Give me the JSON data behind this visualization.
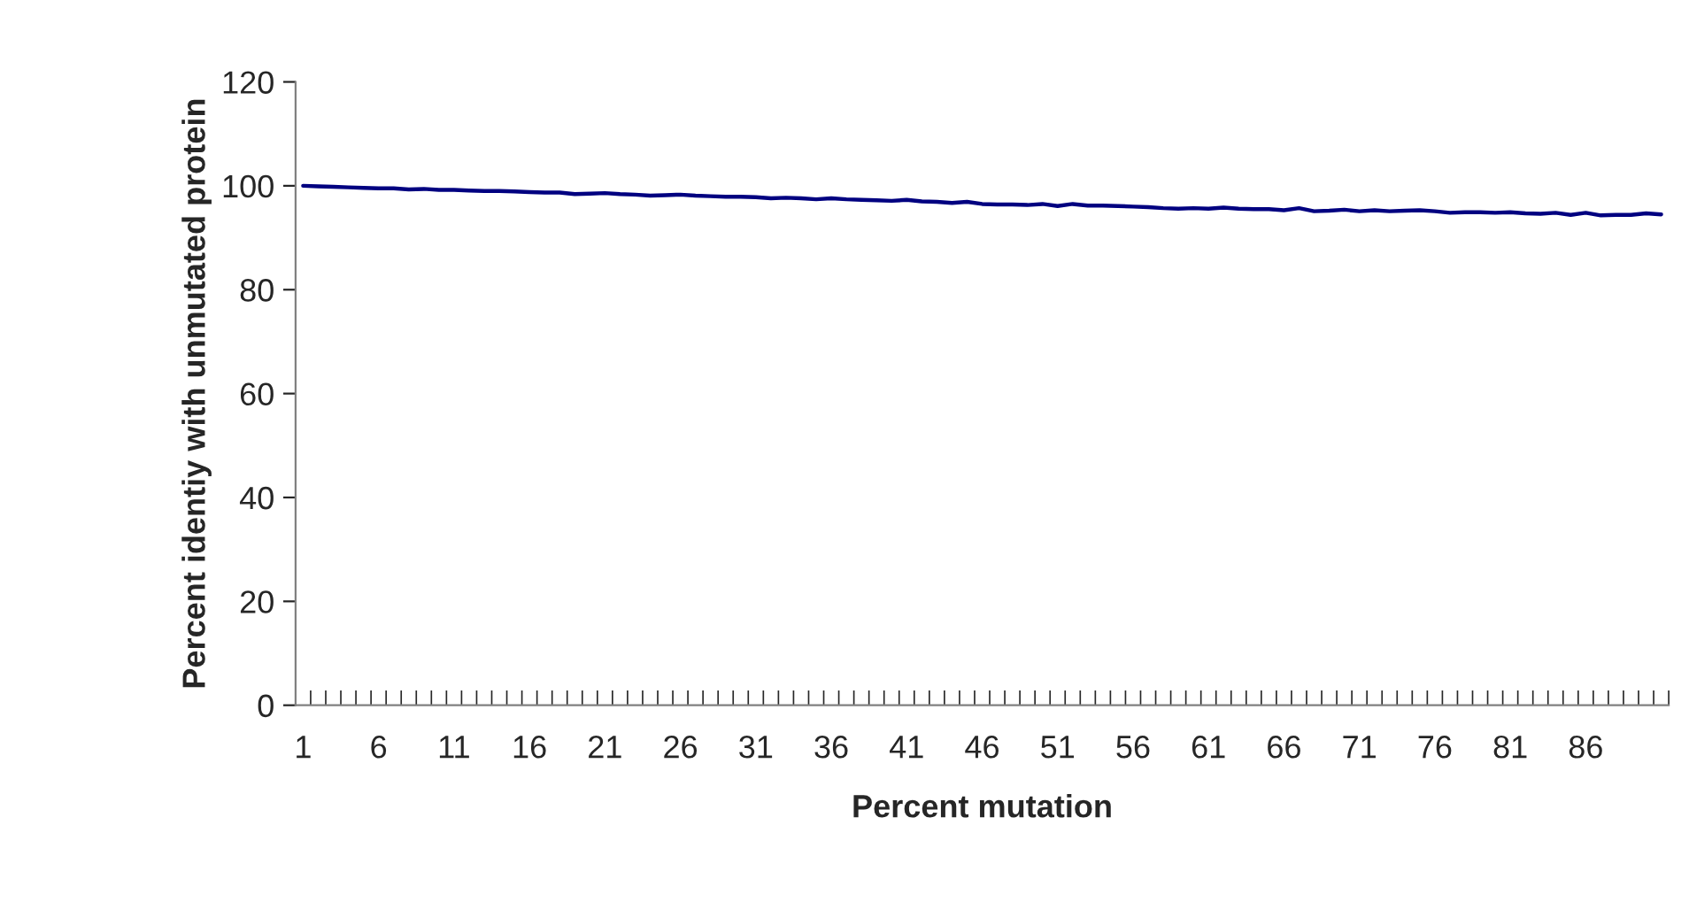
{
  "chart_data": {
    "type": "line",
    "xlabel": "Percent mutation",
    "ylabel": "Percent identiy with unmutated protein",
    "categories": [
      "1",
      null,
      null,
      null,
      null,
      "6",
      null,
      null,
      null,
      null,
      "11",
      null,
      null,
      null,
      null,
      "16",
      null,
      null,
      null,
      null,
      "21",
      null,
      null,
      null,
      null,
      "26",
      null,
      null,
      null,
      null,
      "31",
      null,
      null,
      null,
      null,
      "36",
      null,
      null,
      null,
      null,
      "41",
      null,
      null,
      null,
      null,
      "46",
      null,
      null,
      null,
      null,
      "51",
      null,
      null,
      null,
      null,
      "56",
      null,
      null,
      null,
      null,
      "61",
      null,
      null,
      null,
      null,
      "66",
      null,
      null,
      null,
      null,
      "71",
      null,
      null,
      null,
      null,
      "76",
      null,
      null,
      null,
      null,
      "81",
      null,
      null,
      null,
      null,
      "86",
      null,
      null,
      null,
      null,
      null
    ],
    "series": [
      {
        "color": "#000080",
        "values": [
          100,
          99.9,
          99.8,
          99.7,
          99.6,
          99.5,
          99.5,
          99.3,
          99.4,
          99.2,
          99.2,
          99.1,
          99,
          99,
          98.9,
          98.8,
          98.7,
          98.7,
          98.4,
          98.5,
          98.6,
          98.4,
          98.3,
          98.1,
          98.2,
          98.3,
          98.1,
          98,
          97.9,
          97.9,
          97.8,
          97.6,
          97.7,
          97.6,
          97.4,
          97.6,
          97.4,
          97.3,
          97.2,
          97.1,
          97.3,
          97,
          96.9,
          96.7,
          96.9,
          96.5,
          96.4,
          96.4,
          96.3,
          96.5,
          96.1,
          96.5,
          96.2,
          96.2,
          96.1,
          96,
          95.9,
          95.7,
          95.6,
          95.7,
          95.6,
          95.8,
          95.6,
          95.5,
          95.5,
          95.3,
          95.7,
          95.1,
          95.2,
          95.4,
          95.1,
          95.3,
          95.1,
          95.2,
          95.3,
          95.1,
          94.8,
          94.9,
          94.9,
          94.8,
          94.9,
          94.7,
          94.6,
          94.8,
          94.4,
          94.8,
          94.3,
          94.4,
          94.4,
          94.7,
          94.5
        ]
      }
    ],
    "ylim": [
      0,
      120
    ],
    "yticks": [
      0,
      20,
      40,
      60,
      80,
      100,
      120
    ],
    "grid": false,
    "legend": false
  }
}
